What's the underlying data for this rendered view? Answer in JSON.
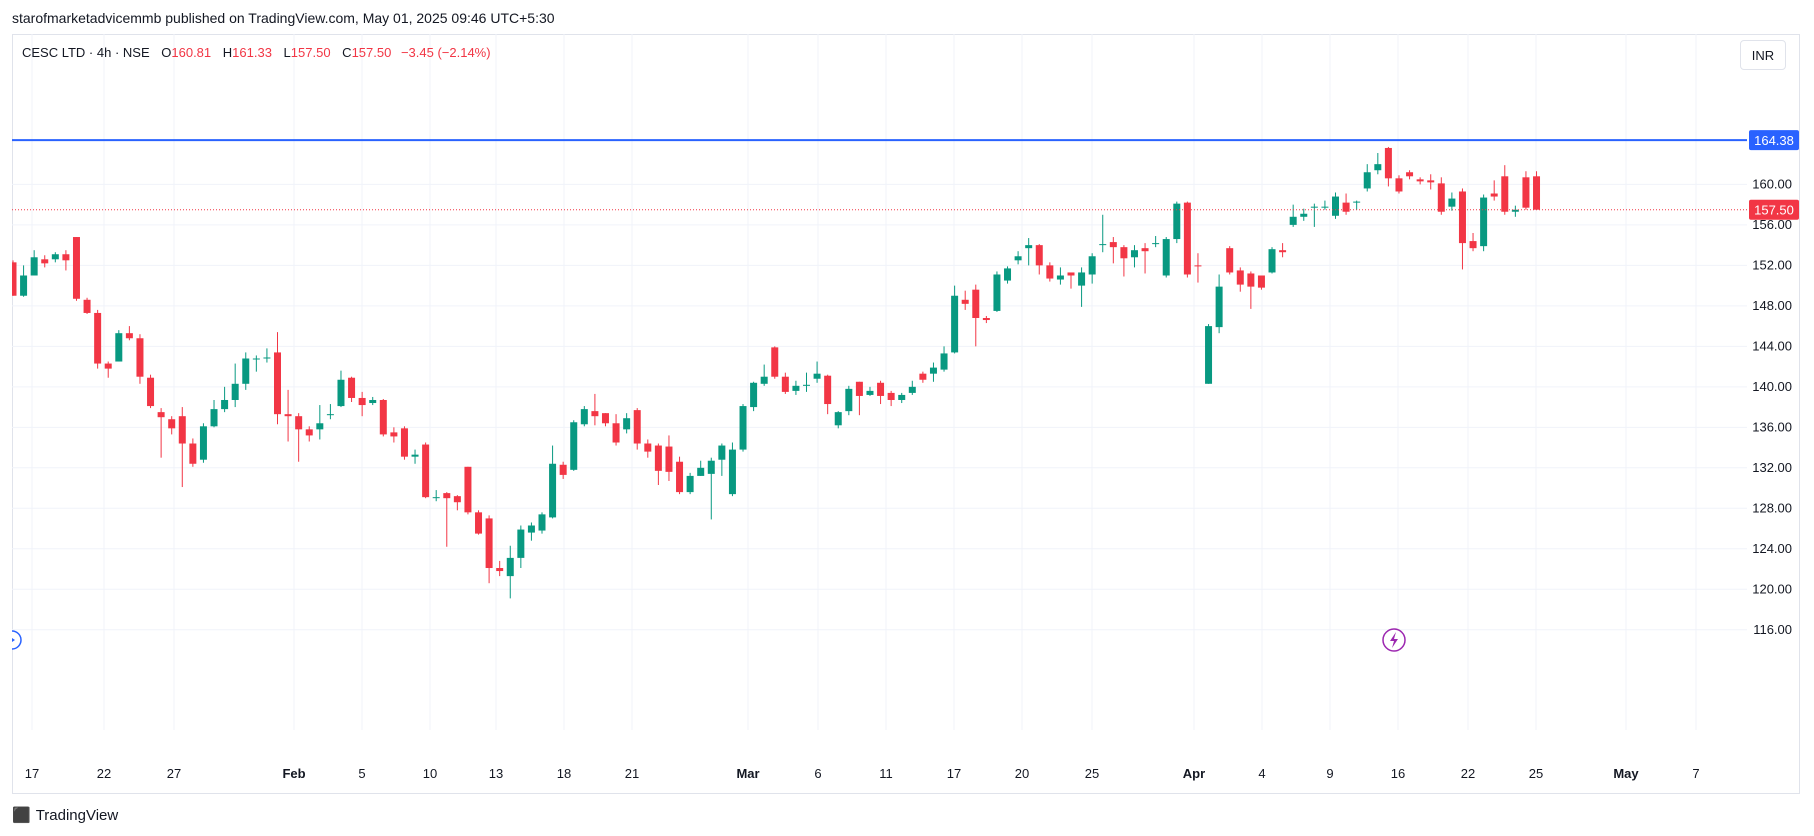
{
  "publisher_line": "starofmarketadvicemmb published on TradingView.com, May 01, 2025 09:46 UTC+5:30",
  "legend": {
    "symbol": "CESC LTD · 4h · NSE",
    "o_label": "O",
    "o_value": "160.81",
    "h_label": "H",
    "h_value": "161.33",
    "l_label": "L",
    "l_value": "157.50",
    "c_label": "C",
    "c_value": "157.50",
    "change": "−3.45 (−2.14%)"
  },
  "currency": "INR",
  "brand": {
    "logo_icon": "tradingview-logo-icon",
    "name": "TradingView"
  },
  "colors": {
    "up": "#089981",
    "down": "#f23645",
    "hline": "#2962ff",
    "grid": "#f0f3fa"
  },
  "chart_data": {
    "type": "candlestick",
    "y_ticks": [
      "116.00",
      "120.00",
      "124.00",
      "128.00",
      "132.00",
      "136.00",
      "140.00",
      "144.00",
      "148.00",
      "152.00",
      "156.00",
      "160.00"
    ],
    "ylim": [
      114.0,
      171.5
    ],
    "x_ticks": [
      "17",
      "22",
      "27",
      "Feb",
      "5",
      "10",
      "13",
      "18",
      "21",
      "Mar",
      "6",
      "11",
      "17",
      "20",
      "25",
      "Apr",
      "4",
      "9",
      "16",
      "22",
      "25",
      "May",
      "7"
    ],
    "horizontal_line": {
      "value": 164.38,
      "label": "164.38"
    },
    "last_price": {
      "value": 157.5,
      "label": "157.50"
    },
    "candles": [
      [
        152.3,
        149.0,
        149.0,
        152.5
      ],
      [
        149.0,
        151.0,
        148.9,
        152.0
      ],
      [
        151.0,
        152.8,
        151.0,
        153.5
      ],
      [
        152.6,
        152.2,
        151.8,
        153.0
      ],
      [
        152.6,
        153.1,
        152.3,
        153.3
      ],
      [
        153.1,
        152.5,
        151.5,
        153.5
      ],
      [
        154.8,
        148.7,
        148.5,
        154.8
      ],
      [
        148.6,
        147.3,
        147.2,
        148.8
      ],
      [
        147.3,
        142.3,
        141.8,
        147.6
      ],
      [
        142.3,
        141.8,
        140.9,
        142.5
      ],
      [
        142.5,
        145.3,
        142.5,
        145.6
      ],
      [
        145.3,
        144.8,
        144.6,
        146.0
      ],
      [
        144.8,
        141.0,
        140.3,
        145.2
      ],
      [
        140.9,
        138.1,
        137.9,
        141.2
      ],
      [
        137.5,
        137.0,
        133.0,
        137.9
      ],
      [
        136.8,
        135.9,
        135.3,
        137.1
      ],
      [
        137.1,
        134.4,
        130.1,
        138.0
      ],
      [
        134.4,
        132.4,
        132.1,
        134.9
      ],
      [
        132.8,
        136.1,
        132.5,
        136.4
      ],
      [
        136.1,
        137.8,
        136.0,
        138.7
      ],
      [
        137.8,
        138.7,
        137.5,
        140.0
      ],
      [
        138.7,
        140.3,
        138.0,
        142.3
      ],
      [
        140.3,
        142.8,
        139.7,
        143.4
      ],
      [
        142.7,
        142.8,
        141.5,
        143.1
      ],
      [
        142.8,
        142.9,
        142.4,
        143.8
      ],
      [
        143.4,
        137.3,
        136.3,
        145.4
      ],
      [
        137.3,
        137.1,
        134.6,
        139.7
      ],
      [
        137.1,
        135.8,
        132.6,
        137.4
      ],
      [
        135.8,
        135.2,
        134.6,
        136.1
      ],
      [
        135.8,
        136.4,
        134.8,
        138.2
      ],
      [
        137.2,
        137.3,
        136.8,
        138.3
      ],
      [
        138.1,
        140.7,
        138.0,
        141.6
      ],
      [
        140.9,
        138.9,
        138.5,
        141.0
      ],
      [
        138.9,
        138.2,
        137.1,
        139.5
      ],
      [
        138.4,
        138.7,
        138.2,
        139.0
      ],
      [
        138.7,
        135.3,
        135.1,
        138.8
      ],
      [
        135.5,
        135.1,
        134.5,
        136.0
      ],
      [
        135.9,
        133.1,
        132.8,
        136.1
      ],
      [
        133.1,
        133.3,
        132.4,
        133.8
      ],
      [
        134.3,
        129.1,
        129.0,
        134.5
      ],
      [
        129.1,
        129.1,
        128.7,
        129.8
      ],
      [
        129.5,
        129.0,
        124.2,
        129.6
      ],
      [
        129.2,
        128.6,
        127.8,
        129.3
      ],
      [
        132.1,
        127.6,
        127.4,
        132.1
      ],
      [
        127.6,
        125.5,
        125.4,
        127.8
      ],
      [
        127.0,
        122.1,
        120.6,
        127.3
      ],
      [
        122.1,
        121.8,
        121.3,
        122.8
      ],
      [
        121.3,
        123.1,
        119.1,
        124.3
      ],
      [
        123.1,
        125.9,
        122.1,
        126.3
      ],
      [
        125.6,
        126.3,
        124.8,
        126.6
      ],
      [
        125.8,
        127.4,
        125.5,
        127.6
      ],
      [
        127.1,
        132.4,
        127.0,
        134.2
      ],
      [
        132.3,
        131.3,
        130.9,
        132.6
      ],
      [
        131.8,
        136.5,
        131.7,
        136.7
      ],
      [
        136.3,
        137.8,
        136.1,
        138.1
      ],
      [
        137.6,
        137.1,
        136.2,
        139.3
      ],
      [
        137.4,
        136.4,
        136.1,
        137.4
      ],
      [
        136.4,
        134.5,
        134.2,
        137.3
      ],
      [
        135.8,
        136.9,
        135.4,
        137.4
      ],
      [
        137.7,
        134.4,
        133.8,
        137.9
      ],
      [
        134.4,
        133.6,
        133.0,
        134.8
      ],
      [
        134.2,
        131.7,
        130.3,
        134.4
      ],
      [
        134.1,
        131.6,
        130.7,
        135.2
      ],
      [
        132.6,
        129.6,
        129.4,
        133.1
      ],
      [
        129.6,
        131.2,
        129.4,
        131.5
      ],
      [
        131.2,
        132.0,
        131.2,
        132.7
      ],
      [
        131.4,
        132.7,
        126.9,
        133.0
      ],
      [
        132.8,
        134.2,
        131.2,
        134.4
      ],
      [
        129.4,
        133.8,
        129.2,
        134.5
      ],
      [
        133.8,
        138.1,
        133.6,
        138.3
      ],
      [
        138.0,
        140.4,
        137.6,
        140.5
      ],
      [
        140.3,
        141.0,
        140.1,
        142.2
      ],
      [
        143.9,
        141.0,
        140.8,
        144.0
      ],
      [
        141.0,
        139.5,
        139.3,
        141.4
      ],
      [
        139.6,
        140.1,
        139.2,
        140.6
      ],
      [
        140.1,
        140.2,
        139.5,
        141.4
      ],
      [
        140.8,
        141.3,
        140.4,
        142.5
      ],
      [
        141.1,
        138.3,
        137.3,
        141.2
      ],
      [
        136.2,
        137.5,
        135.9,
        137.6
      ],
      [
        137.6,
        139.8,
        137.2,
        140.1
      ],
      [
        140.5,
        139.1,
        137.2,
        140.5
      ],
      [
        139.2,
        139.6,
        139.1,
        140.0
      ],
      [
        140.4,
        139.1,
        138.3,
        140.6
      ],
      [
        139.4,
        138.7,
        138.1,
        139.6
      ],
      [
        138.7,
        139.2,
        138.4,
        139.4
      ],
      [
        139.4,
        140.0,
        139.2,
        140.6
      ],
      [
        141.3,
        140.7,
        140.4,
        141.5
      ],
      [
        141.3,
        141.9,
        140.5,
        142.4
      ],
      [
        141.7,
        143.3,
        141.5,
        144.0
      ],
      [
        143.4,
        149.0,
        143.3,
        150.0
      ],
      [
        148.6,
        148.2,
        147.6,
        149.5
      ],
      [
        149.6,
        146.8,
        144.0,
        150.1
      ],
      [
        146.8,
        146.6,
        146.3,
        147.0
      ],
      [
        147.5,
        151.1,
        147.4,
        151.4
      ],
      [
        150.5,
        151.7,
        150.2,
        151.9
      ],
      [
        152.5,
        152.9,
        152.1,
        153.4
      ],
      [
        153.7,
        154.0,
        152.0,
        154.7
      ],
      [
        154.0,
        152.0,
        151.1,
        154.1
      ],
      [
        152.0,
        150.7,
        150.4,
        152.3
      ],
      [
        150.6,
        151.0,
        150.1,
        151.8
      ],
      [
        151.3,
        151.0,
        149.7,
        151.3
      ],
      [
        150.0,
        151.3,
        147.9,
        151.8
      ],
      [
        151.1,
        152.9,
        150.2,
        153.2
      ],
      [
        154.1,
        154.1,
        153.3,
        157.0
      ],
      [
        154.3,
        153.8,
        152.2,
        154.8
      ],
      [
        153.8,
        152.7,
        150.9,
        154.0
      ],
      [
        152.8,
        153.5,
        151.8,
        154.0
      ],
      [
        153.7,
        153.4,
        151.2,
        154.2
      ],
      [
        154.1,
        154.2,
        153.8,
        154.9
      ],
      [
        151.0,
        154.6,
        150.8,
        154.8
      ],
      [
        154.6,
        158.1,
        154.2,
        158.3
      ],
      [
        158.2,
        151.1,
        150.8,
        158.3
      ],
      [
        152.0,
        151.9,
        150.3,
        153.2
      ],
      [
        140.3,
        146.0,
        140.3,
        146.2
      ],
      [
        145.9,
        149.9,
        145.3,
        151.1
      ],
      [
        153.7,
        151.3,
        151.1,
        153.9
      ],
      [
        151.5,
        150.1,
        149.4,
        151.8
      ],
      [
        151.2,
        149.9,
        147.7,
        151.4
      ],
      [
        151.0,
        149.8,
        149.6,
        151.0
      ],
      [
        151.3,
        153.6,
        151.2,
        153.8
      ],
      [
        153.5,
        153.3,
        152.8,
        154.2
      ],
      [
        156.0,
        156.8,
        155.8,
        158.0
      ],
      [
        156.8,
        157.1,
        156.4,
        157.6
      ],
      [
        157.7,
        157.8,
        155.8,
        158.1
      ],
      [
        157.8,
        157.8,
        157.5,
        158.4
      ],
      [
        156.9,
        158.8,
        156.6,
        159.2
      ],
      [
        158.2,
        157.3,
        157.0,
        159.1
      ],
      [
        158.2,
        158.3,
        157.5,
        158.4
      ],
      [
        159.6,
        161.2,
        159.3,
        162.0
      ],
      [
        161.4,
        162.0,
        161.0,
        163.1
      ],
      [
        163.6,
        160.6,
        159.8,
        163.7
      ],
      [
        160.6,
        159.3,
        159.1,
        160.9
      ],
      [
        161.2,
        160.8,
        160.5,
        161.4
      ],
      [
        160.5,
        160.3,
        160.0,
        160.7
      ],
      [
        160.4,
        160.2,
        159.5,
        161.0
      ],
      [
        160.1,
        157.3,
        157.0,
        160.7
      ],
      [
        157.8,
        158.6,
        157.4,
        159.2
      ],
      [
        159.3,
        154.2,
        151.6,
        159.6
      ],
      [
        154.4,
        153.7,
        153.4,
        155.2
      ],
      [
        153.9,
        158.7,
        153.4,
        159.0
      ],
      [
        159.1,
        158.8,
        158.4,
        160.4
      ],
      [
        160.8,
        157.3,
        157.0,
        161.9
      ],
      [
        157.3,
        157.5,
        156.8,
        157.9
      ],
      [
        160.7,
        157.7,
        157.5,
        161.3
      ],
      [
        160.8,
        157.5,
        157.5,
        161.3
      ]
    ]
  }
}
